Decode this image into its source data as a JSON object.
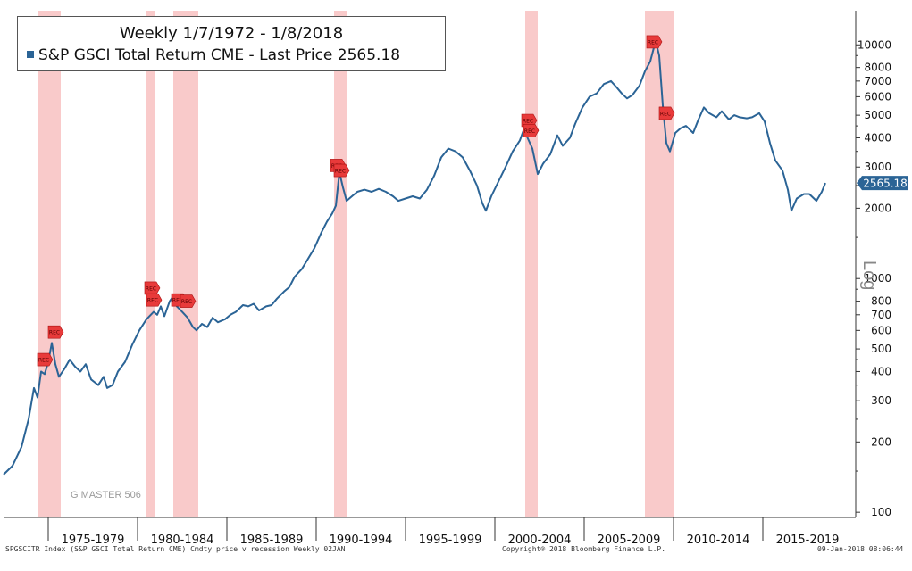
{
  "chart_data": {
    "type": "line",
    "title": "Weekly 1/7/1972 - 1/8/2018",
    "series": [
      {
        "name": "S&P GSCI Total Return CME",
        "legend_label": "S&P GSCI Total Return CME - Last Price 2565.18",
        "color": "#2b6496",
        "last_price_label": "2565.18",
        "points": [
          [
            1972.0,
            145
          ],
          [
            1972.5,
            158
          ],
          [
            1973.0,
            190
          ],
          [
            1973.4,
            250
          ],
          [
            1973.7,
            340
          ],
          [
            1973.9,
            310
          ],
          [
            1974.1,
            400
          ],
          [
            1974.3,
            390
          ],
          [
            1974.5,
            440
          ],
          [
            1974.7,
            530
          ],
          [
            1974.9,
            430
          ],
          [
            1975.1,
            380
          ],
          [
            1975.4,
            410
          ],
          [
            1975.7,
            450
          ],
          [
            1976.0,
            420
          ],
          [
            1976.3,
            400
          ],
          [
            1976.6,
            430
          ],
          [
            1976.9,
            370
          ],
          [
            1977.3,
            350
          ],
          [
            1977.6,
            380
          ],
          [
            1977.8,
            340
          ],
          [
            1978.1,
            350
          ],
          [
            1978.4,
            400
          ],
          [
            1978.8,
            440
          ],
          [
            1979.2,
            520
          ],
          [
            1979.6,
            600
          ],
          [
            1980.0,
            670
          ],
          [
            1980.4,
            720
          ],
          [
            1980.6,
            700
          ],
          [
            1980.8,
            760
          ],
          [
            1981.0,
            690
          ],
          [
            1981.3,
            800
          ],
          [
            1981.5,
            840
          ],
          [
            1981.7,
            760
          ],
          [
            1982.0,
            720
          ],
          [
            1982.3,
            680
          ],
          [
            1982.6,
            620
          ],
          [
            1982.8,
            600
          ],
          [
            1983.1,
            640
          ],
          [
            1983.4,
            620
          ],
          [
            1983.7,
            680
          ],
          [
            1984.0,
            650
          ],
          [
            1984.4,
            670
          ],
          [
            1984.7,
            700
          ],
          [
            1985.0,
            720
          ],
          [
            1985.4,
            770
          ],
          [
            1985.7,
            760
          ],
          [
            1986.0,
            780
          ],
          [
            1986.3,
            730
          ],
          [
            1986.7,
            760
          ],
          [
            1987.0,
            770
          ],
          [
            1987.3,
            820
          ],
          [
            1987.7,
            880
          ],
          [
            1988.0,
            920
          ],
          [
            1988.3,
            1020
          ],
          [
            1988.7,
            1100
          ],
          [
            1989.0,
            1200
          ],
          [
            1989.4,
            1350
          ],
          [
            1989.8,
            1580
          ],
          [
            1990.1,
            1750
          ],
          [
            1990.4,
            1900
          ],
          [
            1990.6,
            2050
          ],
          [
            1990.8,
            2850
          ],
          [
            1991.0,
            2450
          ],
          [
            1991.2,
            2150
          ],
          [
            1991.5,
            2250
          ],
          [
            1991.8,
            2350
          ],
          [
            1992.2,
            2400
          ],
          [
            1992.6,
            2350
          ],
          [
            1993.0,
            2420
          ],
          [
            1993.4,
            2350
          ],
          [
            1993.8,
            2250
          ],
          [
            1994.1,
            2150
          ],
          [
            1994.5,
            2200
          ],
          [
            1994.9,
            2250
          ],
          [
            1995.3,
            2200
          ],
          [
            1995.7,
            2400
          ],
          [
            1996.1,
            2750
          ],
          [
            1996.5,
            3300
          ],
          [
            1996.9,
            3600
          ],
          [
            1997.3,
            3500
          ],
          [
            1997.7,
            3300
          ],
          [
            1998.1,
            2900
          ],
          [
            1998.5,
            2500
          ],
          [
            1998.8,
            2100
          ],
          [
            1999.0,
            1950
          ],
          [
            1999.3,
            2250
          ],
          [
            1999.7,
            2600
          ],
          [
            2000.1,
            3000
          ],
          [
            2000.5,
            3500
          ],
          [
            2000.9,
            3900
          ],
          [
            2001.1,
            4300
          ],
          [
            2001.3,
            4050
          ],
          [
            2001.6,
            3600
          ],
          [
            2001.9,
            2800
          ],
          [
            2002.2,
            3100
          ],
          [
            2002.6,
            3400
          ],
          [
            2003.0,
            4100
          ],
          [
            2003.3,
            3700
          ],
          [
            2003.7,
            4000
          ],
          [
            2004.0,
            4600
          ],
          [
            2004.4,
            5400
          ],
          [
            2004.8,
            6000
          ],
          [
            2005.2,
            6200
          ],
          [
            2005.6,
            6800
          ],
          [
            2006.0,
            7000
          ],
          [
            2006.3,
            6600
          ],
          [
            2006.6,
            6200
          ],
          [
            2006.9,
            5900
          ],
          [
            2007.2,
            6100
          ],
          [
            2007.6,
            6700
          ],
          [
            2007.9,
            7700
          ],
          [
            2008.2,
            8500
          ],
          [
            2008.5,
            10400
          ],
          [
            2008.7,
            9000
          ],
          [
            2008.9,
            5500
          ],
          [
            2009.1,
            3800
          ],
          [
            2009.3,
            3500
          ],
          [
            2009.6,
            4200
          ],
          [
            2009.9,
            4400
          ],
          [
            2010.2,
            4500
          ],
          [
            2010.6,
            4200
          ],
          [
            2010.9,
            4800
          ],
          [
            2011.2,
            5400
          ],
          [
            2011.5,
            5100
          ],
          [
            2011.9,
            4900
          ],
          [
            2012.2,
            5200
          ],
          [
            2012.6,
            4800
          ],
          [
            2012.9,
            5000
          ],
          [
            2013.2,
            4900
          ],
          [
            2013.6,
            4850
          ],
          [
            2013.9,
            4900
          ],
          [
            2014.3,
            5100
          ],
          [
            2014.6,
            4700
          ],
          [
            2014.9,
            3800
          ],
          [
            2015.2,
            3200
          ],
          [
            2015.6,
            2900
          ],
          [
            2015.9,
            2400
          ],
          [
            2016.1,
            1950
          ],
          [
            2016.4,
            2200
          ],
          [
            2016.8,
            2300
          ],
          [
            2017.1,
            2300
          ],
          [
            2017.5,
            2150
          ],
          [
            2017.8,
            2350
          ],
          [
            2018.0,
            2565.18
          ]
        ]
      }
    ],
    "recessions": [
      [
        1973.9,
        1975.2
      ],
      [
        1980.0,
        1980.5
      ],
      [
        1981.5,
        1982.9
      ],
      [
        1990.5,
        1991.2
      ],
      [
        2001.2,
        2001.9
      ],
      [
        2007.9,
        2009.5
      ]
    ],
    "rec_marker_label": "REC",
    "rec_markers": [
      [
        1974.3,
        450
      ],
      [
        1974.9,
        590
      ],
      [
        1980.3,
        910
      ],
      [
        1980.4,
        810
      ],
      [
        1981.8,
        810
      ],
      [
        1982.3,
        800
      ],
      [
        1990.7,
        3050
      ],
      [
        1990.9,
        2900
      ],
      [
        2001.4,
        4750
      ],
      [
        2001.5,
        4300
      ],
      [
        2008.4,
        10300
      ],
      [
        2009.1,
        5100
      ]
    ],
    "xlim": [
      1972.0,
      2019.7
    ],
    "ylim": [
      95,
      14000
    ],
    "yscale": "log",
    "ylabel": "Log",
    "x_ticks": [
      1974.5,
      1979.5,
      1984.5,
      1989.5,
      1994.5,
      1999.5,
      2004.5,
      2009.5,
      2014.5
    ],
    "x_tick_labels": [
      {
        "label": "1975-1979",
        "center": 1977.0
      },
      {
        "label": "1980-1984",
        "center": 1982.0
      },
      {
        "label": "1985-1989",
        "center": 1987.0
      },
      {
        "label": "1990-1994",
        "center": 1992.0
      },
      {
        "label": "1995-1999",
        "center": 1997.0
      },
      {
        "label": "2000-2004",
        "center": 2002.0
      },
      {
        "label": "2005-2009",
        "center": 2007.0
      },
      {
        "label": "2010-2014",
        "center": 2012.0
      },
      {
        "label": "2015-2019",
        "center": 2017.0
      }
    ],
    "y_ticks": [
      {
        "value": 100,
        "label": "100"
      },
      {
        "value": 200,
        "label": "200"
      },
      {
        "value": 300,
        "label": "300"
      },
      {
        "value": 400,
        "label": "400"
      },
      {
        "value": 500,
        "label": "500"
      },
      {
        "value": 600,
        "label": "600"
      },
      {
        "value": 700,
        "label": "700"
      },
      {
        "value": 800,
        "label": "800"
      },
      {
        "value": 1000,
        "label": "1000"
      },
      {
        "value": 2000,
        "label": "2000"
      },
      {
        "value": 3000,
        "label": "3000"
      },
      {
        "value": 4000,
        "label": "4000"
      },
      {
        "value": 5000,
        "label": "5000"
      },
      {
        "value": 6000,
        "label": "6000"
      },
      {
        "value": 7000,
        "label": "7000"
      },
      {
        "value": 8000,
        "label": "8000"
      },
      {
        "value": 10000,
        "label": "10000"
      }
    ]
  },
  "watermark": "G MASTER 506",
  "footer": {
    "left": "SPGSCITR Index (S&P GSCI Total Return CME) Cmdty price v recession  Weekly 02JAN",
    "center": "Copyright® 2018 Bloomberg Finance L.P.",
    "right": "09-Jan-2018 08:06:44"
  },
  "colors": {
    "line": "#2b6496",
    "recession": "#f8c4c4",
    "rec_marker": "#e83a3a",
    "axis": "#333333"
  }
}
